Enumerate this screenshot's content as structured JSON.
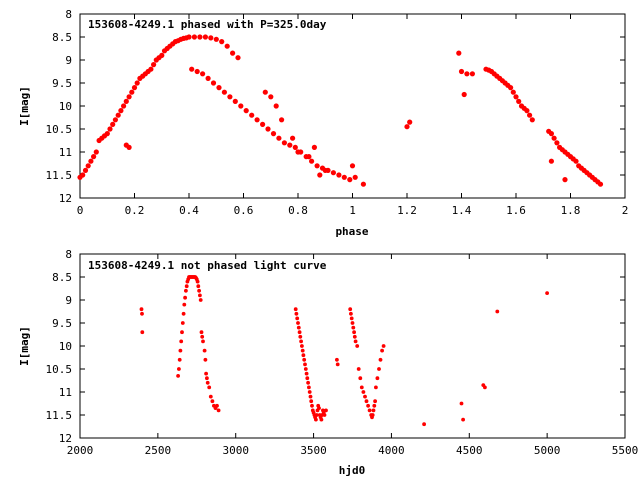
{
  "colors": {
    "points": "#ff0000",
    "axes": "#000000",
    "background": "#ffffff"
  },
  "chart_data": [
    {
      "type": "scatter",
      "title": "153608-4249.1 phased with P=325.0day",
      "xlabel": "phase",
      "ylabel": "I[mag]",
      "xlim": [
        0,
        2
      ],
      "ylim": [
        12,
        8
      ],
      "y_inverted": true,
      "grid": false,
      "xticks": [
        "0",
        "0.2",
        "0.4",
        "0.6",
        "0.8",
        "1",
        "1.2",
        "1.4",
        "1.6",
        "1.8",
        "2"
      ],
      "yticks": [
        "8",
        "8.5",
        "9",
        "9.5",
        "10",
        "10.5",
        "11",
        "11.5",
        "12"
      ],
      "series": [
        {
          "x": [
            0.0,
            0.01,
            0.02,
            0.03,
            0.04,
            0.05,
            0.06,
            0.07,
            0.08,
            0.09,
            0.1,
            0.11,
            0.12,
            0.13,
            0.14,
            0.15,
            0.16,
            0.17,
            0.18,
            0.19,
            0.2,
            0.21,
            0.22,
            0.23,
            0.24,
            0.25,
            0.26,
            0.27,
            0.28,
            0.29,
            0.3,
            0.31,
            0.32,
            0.33,
            0.34,
            0.35,
            0.36,
            0.37,
            0.38,
            0.39,
            0.4,
            0.42,
            0.44,
            0.46,
            0.48,
            0.5,
            0.52,
            0.54,
            0.56,
            0.58,
            0.41,
            0.43,
            0.45,
            0.47,
            0.49,
            0.51,
            0.53,
            0.55,
            0.57,
            0.59,
            0.61,
            0.63,
            0.65,
            0.67,
            0.69,
            0.71,
            0.73,
            0.75,
            0.77,
            0.79,
            0.81,
            0.83,
            0.85,
            0.87,
            0.89,
            0.91,
            0.93,
            0.95,
            0.97,
            0.99,
            0.68,
            0.7,
            0.72,
            0.74,
            0.78,
            0.8,
            0.84,
            0.86,
            0.88,
            0.9,
            1.0,
            1.01,
            1.04,
            0.17,
            0.18,
            1.2,
            1.21,
            1.39,
            1.4,
            1.41,
            1.42,
            1.44,
            1.49,
            1.5,
            1.51,
            1.52,
            1.53,
            1.54,
            1.55,
            1.56,
            1.57,
            1.58,
            1.59,
            1.6,
            1.61,
            1.62,
            1.63,
            1.64,
            1.65,
            1.66,
            1.72,
            1.73,
            1.74,
            1.75,
            1.76,
            1.77,
            1.78,
            1.79,
            1.8,
            1.81,
            1.82,
            1.83,
            1.84,
            1.85,
            1.86,
            1.87,
            1.88,
            1.89,
            1.9,
            1.91,
            1.73,
            1.78
          ],
          "y": [
            11.55,
            11.5,
            11.4,
            11.3,
            11.2,
            11.1,
            11.0,
            10.75,
            10.7,
            10.65,
            10.6,
            10.5,
            10.4,
            10.3,
            10.2,
            10.1,
            10.0,
            9.9,
            9.8,
            9.7,
            9.6,
            9.5,
            9.4,
            9.35,
            9.3,
            9.25,
            9.2,
            9.1,
            9.0,
            8.95,
            8.9,
            8.8,
            8.75,
            8.7,
            8.65,
            8.6,
            8.58,
            8.55,
            8.53,
            8.52,
            8.5,
            8.5,
            8.5,
            8.5,
            8.52,
            8.55,
            8.6,
            8.7,
            8.85,
            8.95,
            9.2,
            9.25,
            9.3,
            9.4,
            9.5,
            9.6,
            9.7,
            9.8,
            9.9,
            10.0,
            10.1,
            10.2,
            10.3,
            10.4,
            10.5,
            10.6,
            10.7,
            10.8,
            10.85,
            10.9,
            11.0,
            11.1,
            11.2,
            11.3,
            11.35,
            11.4,
            11.45,
            11.5,
            11.55,
            11.6,
            9.7,
            9.8,
            10.0,
            10.3,
            10.7,
            11.0,
            11.1,
            10.9,
            11.5,
            11.4,
            11.3,
            11.55,
            11.7,
            10.85,
            10.9,
            10.45,
            10.35,
            8.85,
            9.25,
            9.75,
            9.3,
            9.3,
            9.2,
            9.22,
            9.25,
            9.3,
            9.35,
            9.4,
            9.45,
            9.5,
            9.55,
            9.6,
            9.7,
            9.8,
            9.9,
            10.0,
            10.05,
            10.1,
            10.2,
            10.3,
            10.55,
            10.6,
            10.7,
            10.8,
            10.9,
            10.95,
            11.0,
            11.05,
            11.1,
            11.15,
            11.2,
            11.3,
            11.35,
            11.4,
            11.45,
            11.5,
            11.55,
            11.6,
            11.65,
            11.7,
            11.2,
            11.6
          ]
        }
      ]
    },
    {
      "type": "scatter",
      "title": "153608-4249.1 not phased light curve",
      "xlabel": "hjd0",
      "ylabel": "I[mag]",
      "xlim": [
        2000,
        5500
      ],
      "ylim": [
        12,
        8
      ],
      "y_inverted": true,
      "grid": false,
      "xticks": [
        "2000",
        "2500",
        "3000",
        "3500",
        "4000",
        "4500",
        "5000",
        "5500"
      ],
      "yticks": [
        "8",
        "8.5",
        "9",
        "9.5",
        "10",
        "10.5",
        "11",
        "11.5",
        "12"
      ],
      "series": [
        {
          "x": [
            2395,
            2398,
            2400,
            2630,
            2635,
            2640,
            2645,
            2650,
            2655,
            2660,
            2665,
            2670,
            2675,
            2680,
            2685,
            2690,
            2695,
            2700,
            2705,
            2710,
            2715,
            2720,
            2725,
            2730,
            2735,
            2740,
            2745,
            2750,
            2755,
            2760,
            2765,
            2770,
            2775,
            2780,
            2785,
            2790,
            2800,
            2805,
            2810,
            2815,
            2820,
            2830,
            2840,
            2850,
            2860,
            2870,
            2880,
            2890,
            3385,
            3390,
            3395,
            3400,
            3405,
            3410,
            3415,
            3420,
            3425,
            3430,
            3435,
            3440,
            3445,
            3450,
            3455,
            3460,
            3465,
            3470,
            3475,
            3480,
            3485,
            3490,
            3495,
            3500,
            3505,
            3510,
            3515,
            3520,
            3525,
            3530,
            3535,
            3540,
            3545,
            3550,
            3555,
            3560,
            3565,
            3570,
            3580,
            3650,
            3655,
            3735,
            3740,
            3745,
            3750,
            3755,
            3760,
            3765,
            3770,
            3780,
            3790,
            3800,
            3810,
            3820,
            3830,
            3840,
            3850,
            3860,
            3870,
            3875,
            3880,
            3885,
            3890,
            3895,
            3900,
            3910,
            3920,
            3930,
            3940,
            3950,
            4210,
            4450,
            4460,
            4590,
            4600,
            4680,
            5000
          ],
          "y": [
            9.2,
            9.3,
            9.7,
            10.65,
            10.5,
            10.3,
            10.1,
            9.9,
            9.7,
            9.5,
            9.3,
            9.1,
            8.95,
            8.8,
            8.7,
            8.6,
            8.55,
            8.5,
            8.5,
            8.5,
            8.5,
            8.5,
            8.5,
            8.5,
            8.5,
            8.5,
            8.52,
            8.55,
            8.6,
            8.7,
            8.8,
            8.9,
            9.0,
            9.7,
            9.8,
            9.9,
            10.1,
            10.3,
            10.6,
            10.7,
            10.8,
            10.9,
            11.1,
            11.2,
            11.3,
            11.35,
            11.3,
            11.4,
            9.2,
            9.3,
            9.4,
            9.5,
            9.6,
            9.7,
            9.8,
            9.9,
            10.0,
            10.1,
            10.2,
            10.3,
            10.4,
            10.5,
            10.6,
            10.7,
            10.8,
            10.9,
            11.0,
            11.1,
            11.2,
            11.3,
            11.4,
            11.45,
            11.5,
            11.55,
            11.6,
            11.5,
            11.4,
            11.3,
            11.35,
            11.5,
            11.55,
            11.6,
            11.5,
            11.4,
            11.45,
            11.5,
            11.4,
            10.3,
            10.4,
            9.2,
            9.3,
            9.4,
            9.5,
            9.6,
            9.7,
            9.8,
            9.9,
            10.0,
            10.5,
            10.7,
            10.9,
            11.0,
            11.1,
            11.2,
            11.3,
            11.4,
            11.5,
            11.55,
            11.5,
            11.4,
            11.3,
            11.2,
            10.9,
            10.7,
            10.5,
            10.3,
            10.1,
            10.0,
            11.7,
            11.25,
            11.6,
            10.85,
            10.9,
            9.25,
            8.85
          ]
        }
      ]
    }
  ]
}
